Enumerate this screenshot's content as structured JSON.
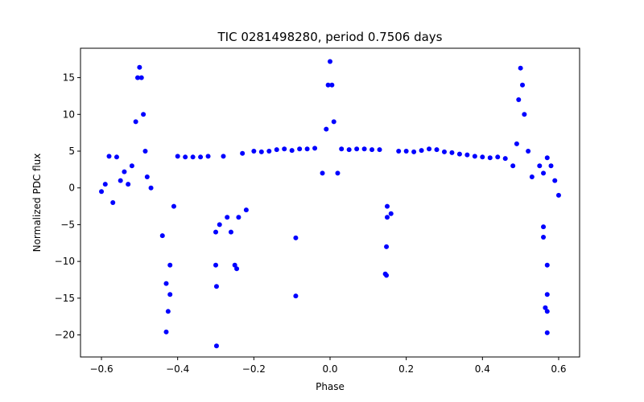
{
  "chart_data": {
    "type": "scatter",
    "title": "TIC 0281498280, period 0.7506 days",
    "xlabel": "Phase",
    "ylabel": "Normalized PDC flux",
    "xlim": [
      -0.655,
      0.655
    ],
    "ylim": [
      -23.0,
      19.0
    ],
    "xticks": [
      -0.6,
      -0.4,
      -0.2,
      0.0,
      0.2,
      0.4,
      0.6
    ],
    "xtick_labels": [
      "−0.6",
      "−0.4",
      "−0.2",
      "0.0",
      "0.2",
      "0.4",
      "0.6"
    ],
    "yticks": [
      -20,
      -15,
      -10,
      -5,
      0,
      5,
      10,
      15
    ],
    "ytick_labels": [
      "−20",
      "−15",
      "−10",
      "−5",
      "0",
      "5",
      "10",
      "15"
    ],
    "grid": false,
    "marker_color": "#0000ff",
    "series": [
      {
        "points": [
          [
            -0.6,
            -0.5
          ],
          [
            -0.59,
            0.5
          ],
          [
            -0.58,
            4.3
          ],
          [
            -0.57,
            -2.0
          ],
          [
            -0.56,
            4.2
          ],
          [
            -0.55,
            1.0
          ],
          [
            -0.54,
            2.2
          ],
          [
            -0.53,
            0.5
          ],
          [
            -0.52,
            3.0
          ],
          [
            -0.51,
            9.0
          ],
          [
            -0.505,
            15.0
          ],
          [
            -0.5,
            16.4
          ],
          [
            -0.495,
            15.0
          ],
          [
            -0.49,
            10.0
          ],
          [
            -0.485,
            5.0
          ],
          [
            -0.48,
            1.5
          ],
          [
            -0.47,
            0.0
          ],
          [
            -0.44,
            -6.5
          ],
          [
            -0.43,
            -13.0
          ],
          [
            -0.425,
            -16.8
          ],
          [
            -0.43,
            -19.6
          ],
          [
            -0.42,
            -10.5
          ],
          [
            -0.42,
            -14.5
          ],
          [
            -0.41,
            -2.5
          ],
          [
            -0.4,
            4.3
          ],
          [
            -0.38,
            4.2
          ],
          [
            -0.36,
            4.2
          ],
          [
            -0.34,
            4.2
          ],
          [
            -0.32,
            4.3
          ],
          [
            -0.3,
            -6.0
          ],
          [
            -0.3,
            -10.5
          ],
          [
            -0.298,
            -13.4
          ],
          [
            -0.298,
            -21.5
          ],
          [
            -0.29,
            -5.0
          ],
          [
            -0.28,
            4.3
          ],
          [
            -0.27,
            -4.0
          ],
          [
            -0.26,
            -6.0
          ],
          [
            -0.25,
            -10.5
          ],
          [
            -0.245,
            -11.0
          ],
          [
            -0.24,
            -4.0
          ],
          [
            -0.23,
            4.7
          ],
          [
            -0.22,
            -3.0
          ],
          [
            -0.2,
            5.0
          ],
          [
            -0.18,
            4.9
          ],
          [
            -0.16,
            5.0
          ],
          [
            -0.14,
            5.2
          ],
          [
            -0.12,
            5.3
          ],
          [
            -0.1,
            5.1
          ],
          [
            -0.09,
            -6.8
          ],
          [
            -0.09,
            -14.7
          ],
          [
            -0.08,
            5.3
          ],
          [
            -0.06,
            5.3
          ],
          [
            -0.04,
            5.4
          ],
          [
            -0.02,
            2.0
          ],
          [
            -0.01,
            8.0
          ],
          [
            -0.005,
            14.0
          ],
          [
            0.0,
            17.2
          ],
          [
            0.005,
            14.0
          ],
          [
            0.01,
            9.0
          ],
          [
            0.02,
            2.0
          ],
          [
            0.03,
            5.3
          ],
          [
            0.05,
            5.2
          ],
          [
            0.07,
            5.3
          ],
          [
            0.09,
            5.3
          ],
          [
            0.11,
            5.2
          ],
          [
            0.13,
            5.2
          ],
          [
            0.15,
            -2.5
          ],
          [
            0.15,
            -4.0
          ],
          [
            0.148,
            -8.0
          ],
          [
            0.145,
            -11.7
          ],
          [
            0.148,
            -11.9
          ],
          [
            0.16,
            -3.5
          ],
          [
            0.18,
            5.0
          ],
          [
            0.2,
            5.0
          ],
          [
            0.22,
            4.9
          ],
          [
            0.24,
            5.1
          ],
          [
            0.26,
            5.3
          ],
          [
            0.28,
            5.2
          ],
          [
            0.3,
            4.9
          ],
          [
            0.32,
            4.8
          ],
          [
            0.34,
            4.6
          ],
          [
            0.36,
            4.5
          ],
          [
            0.38,
            4.3
          ],
          [
            0.4,
            4.2
          ],
          [
            0.42,
            4.1
          ],
          [
            0.44,
            4.2
          ],
          [
            0.46,
            4.0
          ],
          [
            0.48,
            3.0
          ],
          [
            0.49,
            6.0
          ],
          [
            0.495,
            12.0
          ],
          [
            0.5,
            16.3
          ],
          [
            0.505,
            14.0
          ],
          [
            0.51,
            10.0
          ],
          [
            0.52,
            5.0
          ],
          [
            0.53,
            1.5
          ],
          [
            0.55,
            3.0
          ],
          [
            0.56,
            2.0
          ],
          [
            0.57,
            4.1
          ],
          [
            0.56,
            -5.3
          ],
          [
            0.56,
            -6.7
          ],
          [
            0.57,
            -10.5
          ],
          [
            0.57,
            -14.5
          ],
          [
            0.565,
            -16.3
          ],
          [
            0.57,
            -16.8
          ],
          [
            0.57,
            -19.7
          ],
          [
            0.58,
            3.0
          ],
          [
            0.59,
            1.0
          ],
          [
            0.6,
            -1.0
          ]
        ]
      }
    ]
  }
}
